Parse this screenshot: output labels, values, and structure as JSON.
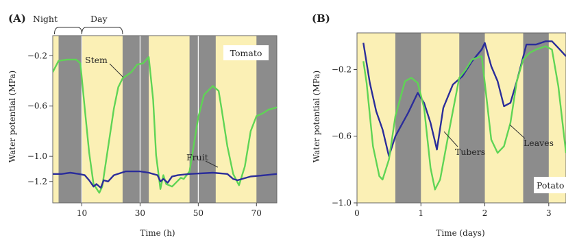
{
  "chart_data": [
    {
      "panel": "(A)",
      "type": "line",
      "xlabel": "Time (h)",
      "ylabel": "Water potential (MPa)",
      "xlim": [
        0,
        77
      ],
      "ylim": [
        -1.37,
        -0.04
      ],
      "xticks": [
        10,
        30,
        50,
        70
      ],
      "yticks": [
        -0.2,
        -0.6,
        -1.0,
        -1.2
      ],
      "band_colors": {
        "night": "#8c8c8c",
        "day": "#fbf0b5"
      },
      "night_periods": [
        [
          2,
          10
        ],
        [
          24,
          33
        ],
        [
          47,
          56
        ],
        [
          70,
          77
        ]
      ],
      "bracket_labels": [
        {
          "text": "Night",
          "range": [
            2,
            10
          ]
        },
        {
          "text": "Day",
          "range": [
            10,
            24
          ]
        }
      ],
      "plant_label": "Tomato",
      "series": [
        {
          "name": "Stem",
          "color": "#5fd455",
          "x": [
            0,
            2,
            5,
            8,
            9.5,
            11,
            12.5,
            14,
            16,
            17,
            19,
            21,
            22.5,
            24,
            27,
            29,
            31,
            33,
            34.5,
            35.5,
            37,
            38,
            39,
            41,
            44,
            45,
            47,
            50,
            52,
            55,
            57,
            58,
            60,
            62,
            64,
            66,
            68,
            70,
            72,
            74,
            77
          ],
          "y": [
            -0.33,
            -0.24,
            -0.23,
            -0.23,
            -0.26,
            -0.62,
            -0.97,
            -1.22,
            -1.29,
            -1.24,
            -0.93,
            -0.62,
            -0.45,
            -0.38,
            -0.33,
            -0.27,
            -0.26,
            -0.21,
            -0.55,
            -0.99,
            -1.26,
            -1.15,
            -1.22,
            -1.24,
            -1.17,
            -1.18,
            -1.12,
            -0.69,
            -0.51,
            -0.44,
            -0.48,
            -0.62,
            -0.92,
            -1.14,
            -1.23,
            -1.08,
            -0.8,
            -0.68,
            -0.66,
            -0.63,
            -0.61
          ]
        },
        {
          "name": "Fruit",
          "color": "#2b2d9a",
          "x": [
            0,
            3,
            6,
            9,
            11,
            12.5,
            14,
            15,
            16.5,
            17.5,
            19,
            21,
            25,
            30,
            33,
            36,
            37,
            38,
            39.5,
            41,
            43,
            47,
            55,
            60,
            62,
            63.5,
            65,
            68,
            73,
            77
          ],
          "y": [
            -1.14,
            -1.14,
            -1.13,
            -1.14,
            -1.15,
            -1.19,
            -1.24,
            -1.22,
            -1.25,
            -1.19,
            -1.2,
            -1.15,
            -1.12,
            -1.12,
            -1.13,
            -1.15,
            -1.2,
            -1.18,
            -1.21,
            -1.16,
            -1.15,
            -1.14,
            -1.13,
            -1.14,
            -1.18,
            -1.19,
            -1.18,
            -1.16,
            -1.15,
            -1.14
          ]
        }
      ]
    },
    {
      "panel": "(B)",
      "type": "line",
      "xlabel": "Time (days)",
      "ylabel": "Water potential (MPa)",
      "xlim": [
        0,
        3.27
      ],
      "ylim": [
        -1.0,
        0.02
      ],
      "xticks": [
        0,
        1,
        2,
        3
      ],
      "yticks": [
        -0.2,
        -0.6,
        -1.0
      ],
      "band_colors": {
        "night": "#8c8c8c",
        "day": "#fbf0b5"
      },
      "night_periods": [
        [
          0.6,
          1.0
        ],
        [
          1.6,
          2.0
        ],
        [
          2.6,
          3.0
        ]
      ],
      "plant_label": "Potato",
      "series": [
        {
          "name": "Tubers",
          "color": "#2b2d9a",
          "x": [
            0.1,
            0.2,
            0.3,
            0.4,
            0.5,
            0.6,
            0.8,
            0.95,
            1.05,
            1.15,
            1.25,
            1.35,
            1.5,
            1.65,
            1.8,
            1.95,
            2.0,
            2.1,
            2.2,
            2.3,
            2.4,
            2.5,
            2.65,
            2.8,
            2.95,
            3.05,
            3.15,
            3.27
          ],
          "y": [
            -0.04,
            -0.28,
            -0.45,
            -0.56,
            -0.72,
            -0.6,
            -0.46,
            -0.34,
            -0.4,
            -0.52,
            -0.68,
            -0.43,
            -0.29,
            -0.24,
            -0.15,
            -0.08,
            -0.04,
            -0.18,
            -0.27,
            -0.42,
            -0.4,
            -0.27,
            -0.05,
            -0.05,
            -0.03,
            -0.03,
            -0.07,
            -0.12
          ]
        },
        {
          "name": "Leaves",
          "color": "#5fd455",
          "x": [
            0.1,
            0.15,
            0.25,
            0.35,
            0.4,
            0.5,
            0.6,
            0.75,
            0.85,
            0.95,
            1.05,
            1.15,
            1.22,
            1.3,
            1.45,
            1.6,
            1.7,
            1.8,
            1.95,
            2.0,
            2.1,
            2.2,
            2.3,
            2.4,
            2.5,
            2.6,
            2.7,
            2.8,
            2.95,
            3.05,
            3.15,
            3.27
          ],
          "y": [
            -0.15,
            -0.28,
            -0.66,
            -0.84,
            -0.86,
            -0.74,
            -0.48,
            -0.27,
            -0.25,
            -0.28,
            -0.43,
            -0.79,
            -0.92,
            -0.86,
            -0.55,
            -0.25,
            -0.2,
            -0.14,
            -0.12,
            -0.28,
            -0.62,
            -0.7,
            -0.66,
            -0.52,
            -0.27,
            -0.14,
            -0.1,
            -0.08,
            -0.06,
            -0.08,
            -0.3,
            -0.7
          ]
        }
      ]
    }
  ]
}
